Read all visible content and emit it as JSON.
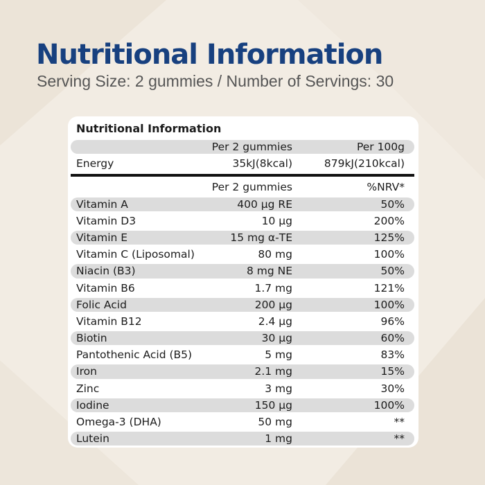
{
  "header": {
    "title": "Nutritional Information",
    "subtitle": "Serving Size: 2 gummies  / Number of Servings: 30"
  },
  "table": {
    "title": "Nutritional Information",
    "energy_header": {
      "col1": "Per 2 gummies",
      "col2": "Per 100g"
    },
    "energy_row": {
      "label": "Energy",
      "per_serving": "35kJ(8kcal)",
      "per_100g": "879kJ(210kcal)"
    },
    "vitamins_header": {
      "col1": "Per 2 gummies",
      "col2": "%NRV*"
    },
    "rows": [
      {
        "name": "Vitamin A",
        "amount": "400 µg RE",
        "nrv": "50%"
      },
      {
        "name": "Vitamin D3",
        "amount": "10 µg",
        "nrv": "200%"
      },
      {
        "name": "Vitamin E",
        "amount": "15 mg α-TE",
        "nrv": "125%"
      },
      {
        "name": "Vitamin C (Liposomal)",
        "amount": "80 mg",
        "nrv": "100%"
      },
      {
        "name": "Niacin (B3)",
        "amount": "8 mg NE",
        "nrv": "50%"
      },
      {
        "name": "Vitamin B6",
        "amount": "1.7 mg",
        "nrv": "121%"
      },
      {
        "name": "Folic Acid",
        "amount": "200 µg",
        "nrv": "100%"
      },
      {
        "name": "Vitamin B12",
        "amount": "2.4 µg",
        "nrv": "96%"
      },
      {
        "name": "Biotin",
        "amount": "30 µg",
        "nrv": "60%"
      },
      {
        "name": "Pantothenic Acid (B5)",
        "amount": "5 mg",
        "nrv": "83%"
      },
      {
        "name": "Iron",
        "amount": "2.1 mg",
        "nrv": "15%"
      },
      {
        "name": "Zinc",
        "amount": "3 mg",
        "nrv": "30%"
      },
      {
        "name": "Iodine",
        "amount": "150 µg",
        "nrv": "100%"
      },
      {
        "name": "Omega-3 (DHA)",
        "amount": "50 mg",
        "nrv": "**"
      },
      {
        "name": "Lutein",
        "amount": "1 mg",
        "nrv": "**"
      }
    ]
  },
  "colors": {
    "title": "#17407f",
    "background": "#f2ece3",
    "row_shade": "#dcdcdc"
  }
}
